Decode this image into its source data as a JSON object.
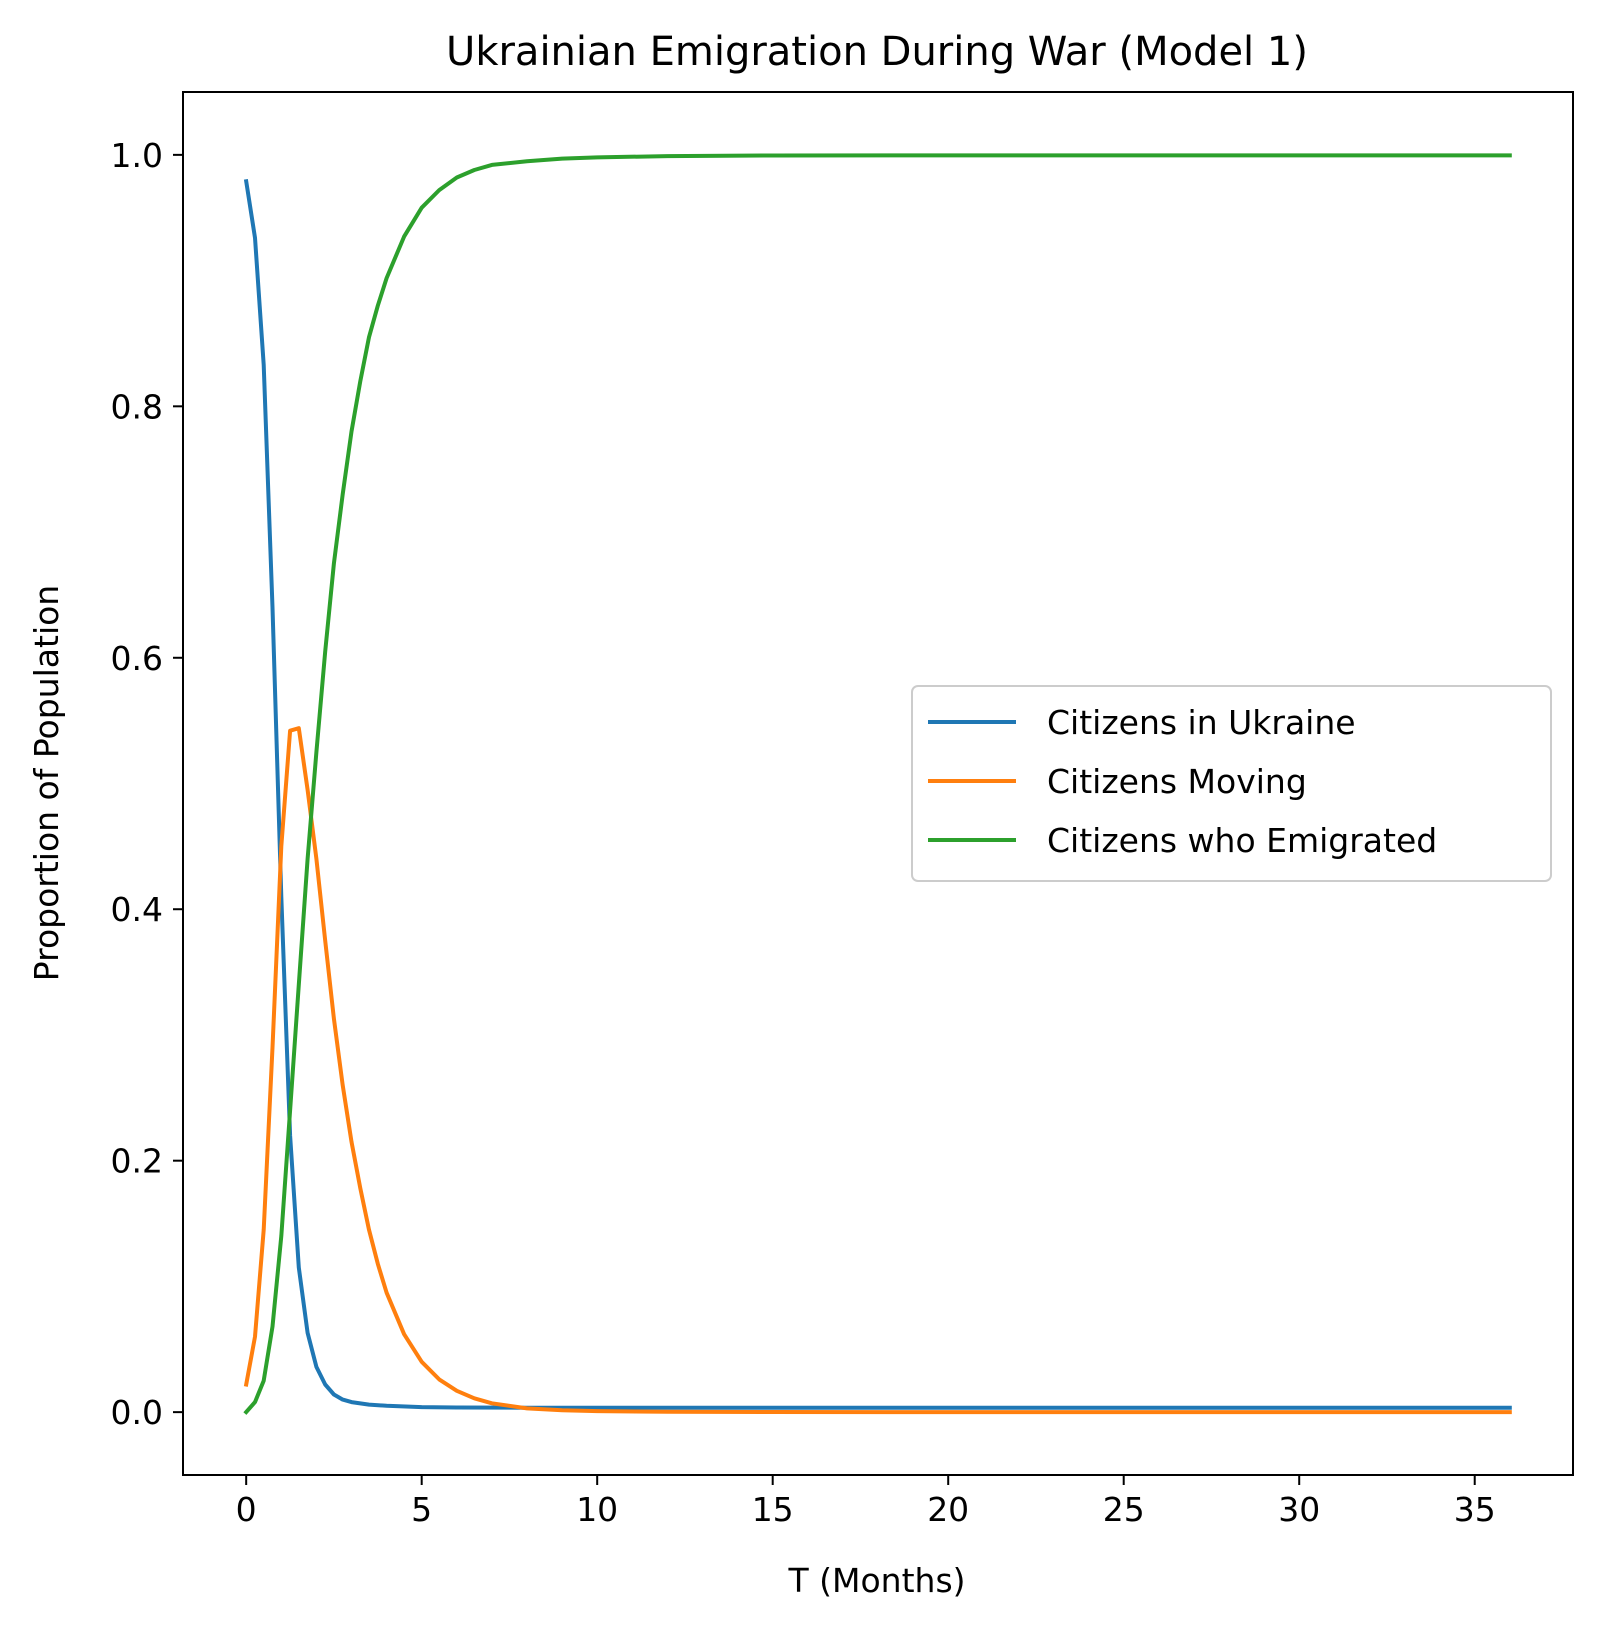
{
  "chart_data": {
    "type": "line",
    "title": "Ukrainian Emigration During War (Model 1)",
    "xlabel": "T (Months)",
    "ylabel": "Proportion of Population",
    "xlim": [
      -1.8,
      37.8
    ],
    "ylim": [
      -0.05,
      1.05
    ],
    "xticks": [
      0,
      5,
      10,
      15,
      20,
      25,
      30,
      35
    ],
    "xtick_labels": [
      "0",
      "5",
      "10",
      "15",
      "20",
      "25",
      "30",
      "35"
    ],
    "yticks": [
      0.0,
      0.2,
      0.4,
      0.6,
      0.8,
      1.0
    ],
    "ytick_labels": [
      "0.0",
      "0.2",
      "0.4",
      "0.6",
      "0.8",
      "1.0"
    ],
    "grid": false,
    "legend_position": "center-right",
    "series": [
      {
        "name": "Citizens in Ukraine",
        "color": "#1f77b4",
        "x": [
          0,
          0.25,
          0.5,
          0.75,
          1.0,
          1.25,
          1.5,
          1.75,
          2.0,
          2.25,
          2.5,
          2.75,
          3.0,
          3.5,
          4.0,
          5.0,
          6.0,
          8.0,
          10.0,
          15.0,
          20.0,
          25.0,
          30.0,
          36.0
        ],
        "y": [
          0.979,
          0.934,
          0.833,
          0.64,
          0.41,
          0.22,
          0.115,
          0.063,
          0.036,
          0.022,
          0.014,
          0.01,
          0.008,
          0.006,
          0.005,
          0.004,
          0.0037,
          0.0035,
          0.0035,
          0.0035,
          0.0035,
          0.0035,
          0.0035,
          0.0035
        ]
      },
      {
        "name": "Citizens Moving",
        "color": "#ff7f0e",
        "x": [
          0,
          0.25,
          0.5,
          0.75,
          1.0,
          1.25,
          1.5,
          1.75,
          2.0,
          2.25,
          2.5,
          2.75,
          3.0,
          3.25,
          3.5,
          3.75,
          4.0,
          4.5,
          5.0,
          5.5,
          6.0,
          6.5,
          7.0,
          8.0,
          9.0,
          10.0,
          12.0,
          15.0,
          20.0,
          25.0,
          30.0,
          36.0
        ],
        "y": [
          0.022,
          0.06,
          0.145,
          0.29,
          0.45,
          0.542,
          0.544,
          0.495,
          0.44,
          0.375,
          0.313,
          0.26,
          0.215,
          0.178,
          0.145,
          0.118,
          0.095,
          0.062,
          0.04,
          0.026,
          0.017,
          0.011,
          0.007,
          0.003,
          0.0015,
          0.0008,
          0.0003,
          0.0001,
          0.0,
          0.0,
          0.0,
          0.0
        ]
      },
      {
        "name": "Citizens who Emigrated",
        "color": "#2ca02c",
        "x": [
          0,
          0.25,
          0.5,
          0.75,
          1.0,
          1.25,
          1.5,
          1.75,
          2.0,
          2.25,
          2.5,
          2.75,
          3.0,
          3.25,
          3.5,
          3.75,
          4.0,
          4.5,
          5.0,
          5.5,
          6.0,
          6.5,
          7.0,
          8.0,
          9.0,
          10.0,
          12.0,
          15.0,
          20.0,
          25.0,
          30.0,
          36.0
        ],
        "y": [
          0.0,
          0.008,
          0.025,
          0.068,
          0.14,
          0.24,
          0.34,
          0.44,
          0.525,
          0.605,
          0.675,
          0.73,
          0.78,
          0.82,
          0.855,
          0.88,
          0.902,
          0.935,
          0.958,
          0.972,
          0.982,
          0.988,
          0.992,
          0.995,
          0.997,
          0.998,
          0.999,
          0.9995,
          0.9996,
          0.9996,
          0.9996,
          0.9996
        ]
      }
    ]
  }
}
